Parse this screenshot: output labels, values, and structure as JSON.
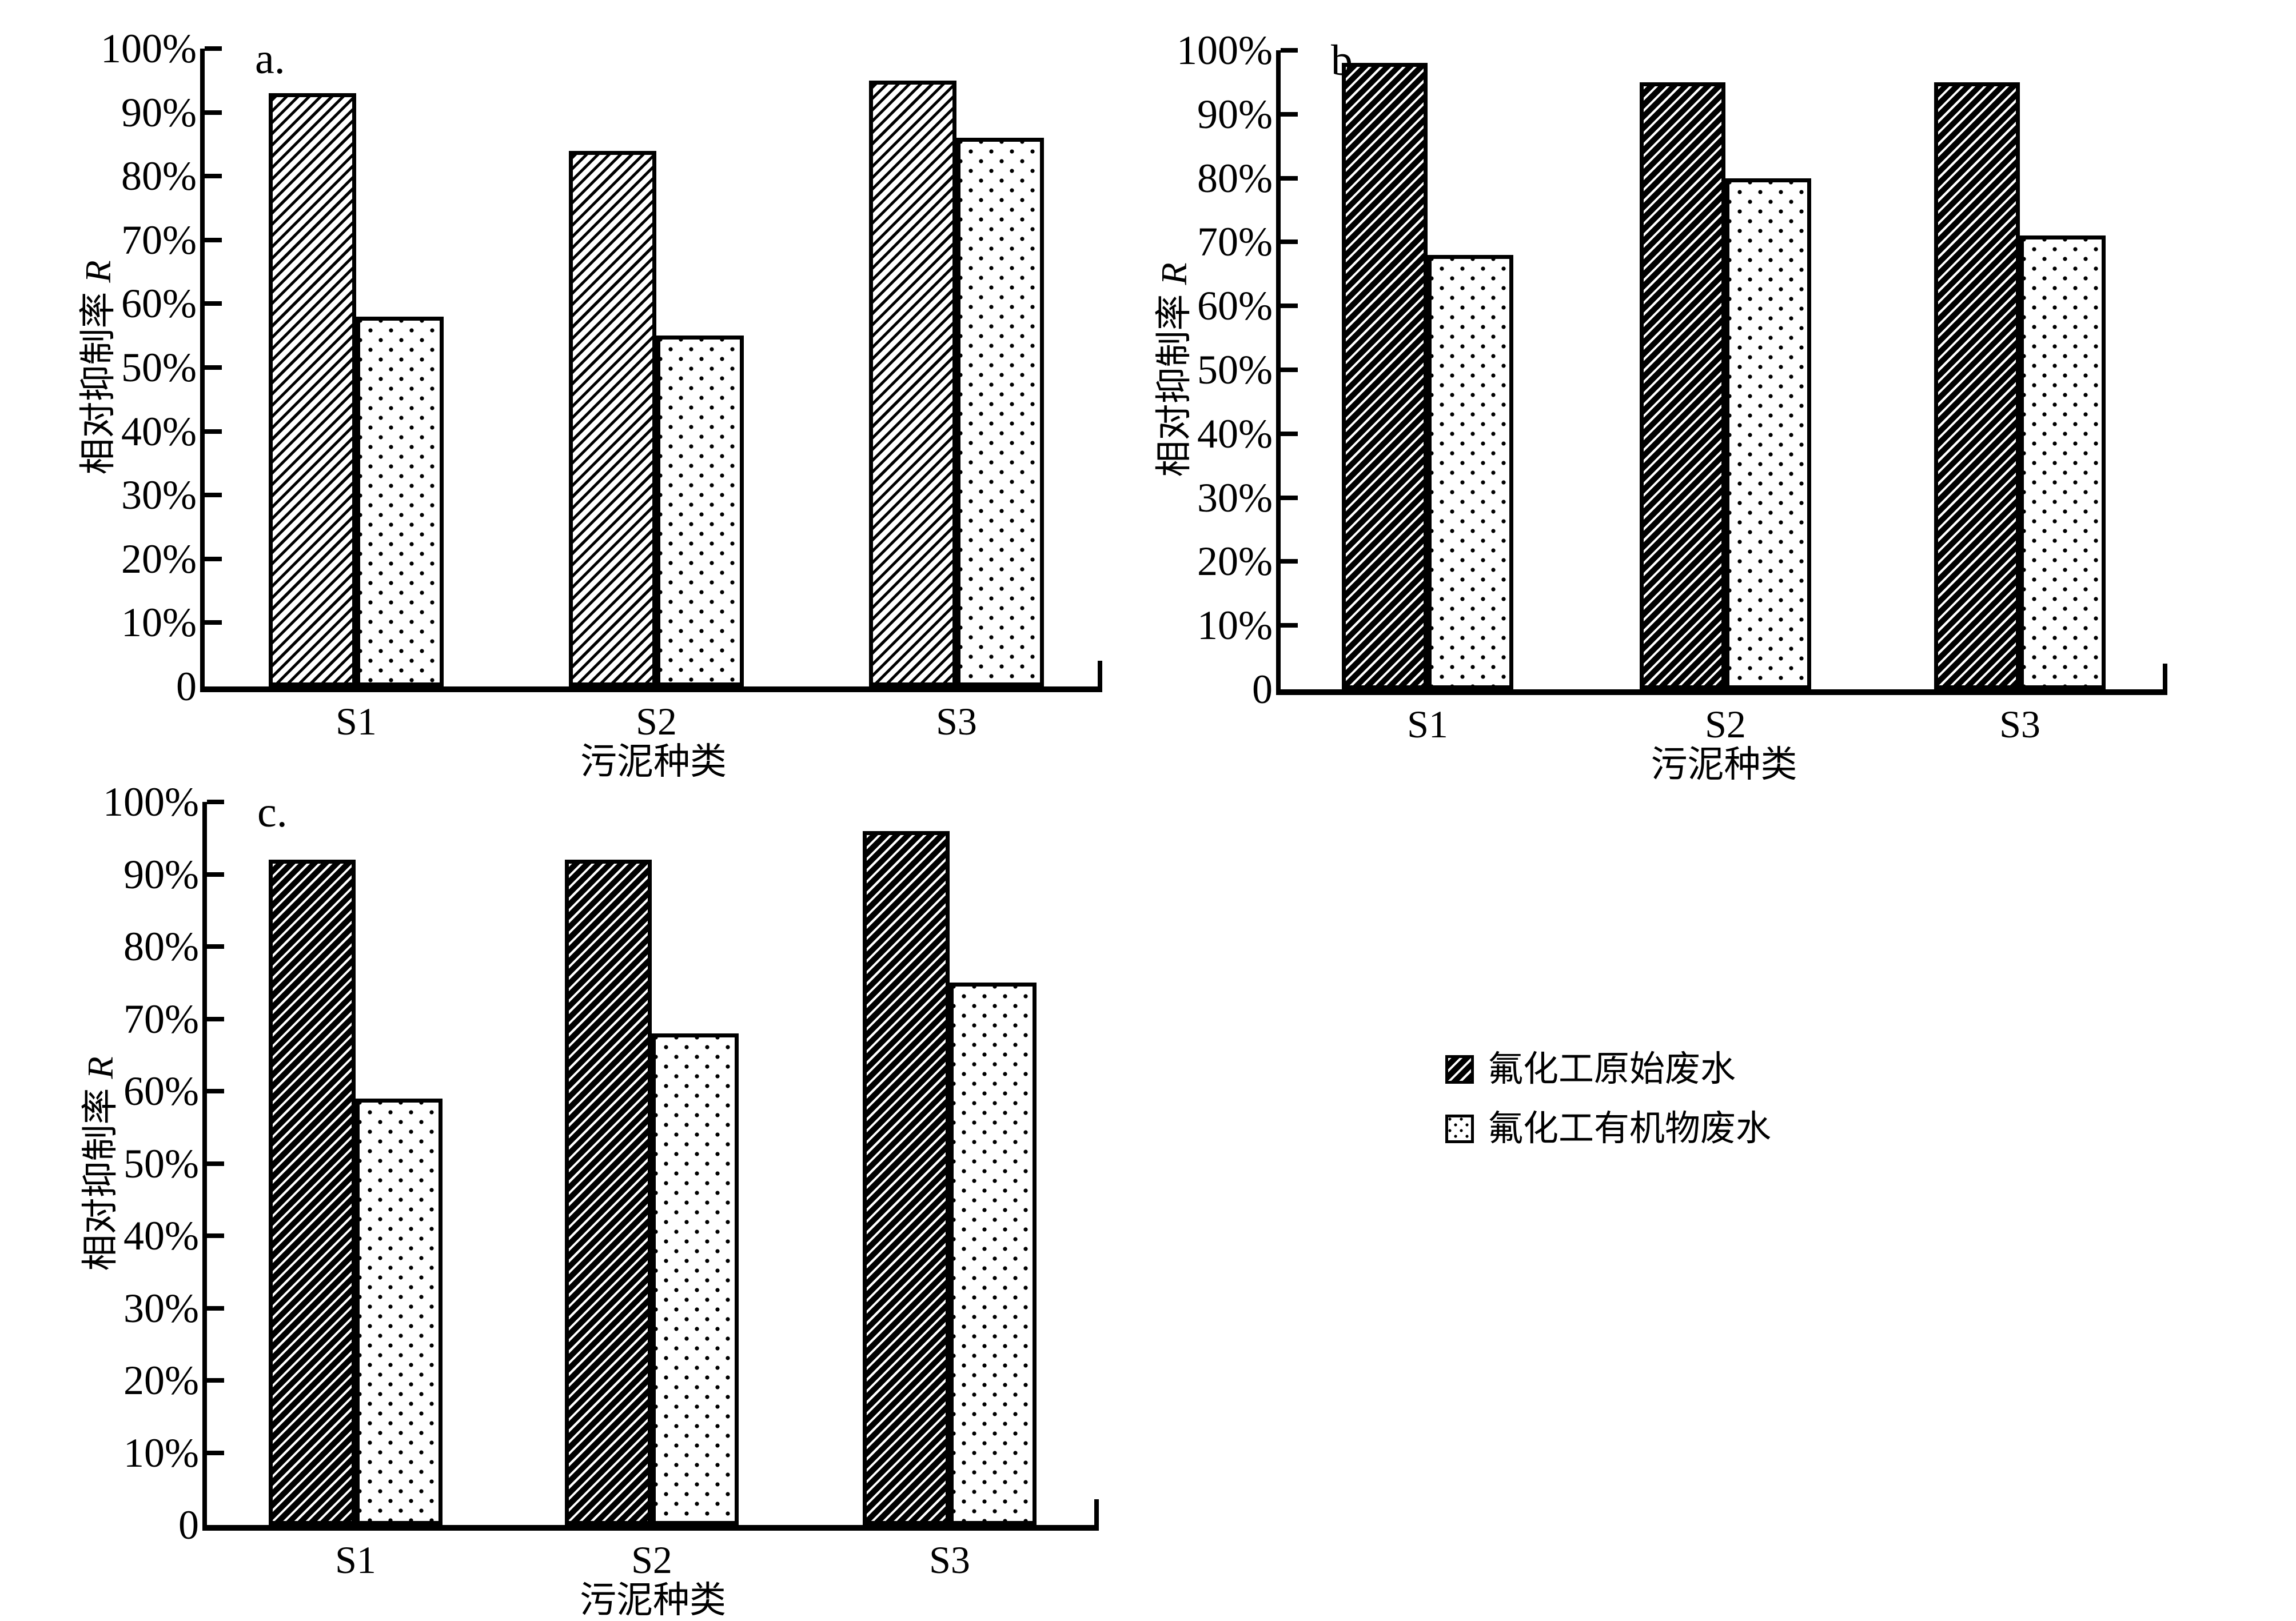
{
  "figure": {
    "background": "#ffffff",
    "ink": "#000000"
  },
  "legend": {
    "items": [
      {
        "label": "氟化工原始废水",
        "swatch": "diagonal-hatch"
      },
      {
        "label": "氟化工有机物废水",
        "swatch": "dots"
      }
    ]
  },
  "chart_data": [
    {
      "id": "a",
      "type": "bar",
      "panel_label": "a.",
      "xlabel": "污泥种类",
      "ylabel": "相对抑制率",
      "ylabel_var": "R",
      "categories": [
        "S1",
        "S2",
        "S3"
      ],
      "series": [
        {
          "name": "氟化工原始废水",
          "pattern": "diagonal-hatch",
          "values": [
            93,
            84,
            95
          ]
        },
        {
          "name": "氟化工有机物废水",
          "pattern": "dots",
          "values": [
            58,
            55,
            86
          ]
        }
      ],
      "ylim": [
        0,
        100
      ],
      "ytick_step": 10,
      "ytick_labels": [
        "0",
        "10%",
        "20%",
        "30%",
        "40%",
        "50%",
        "60%",
        "70%",
        "80%",
        "90%",
        "100%"
      ],
      "grid": false,
      "legend_position": "figure-right-middle"
    },
    {
      "id": "b",
      "type": "bar",
      "panel_label": "b.",
      "xlabel": "污泥种类",
      "ylabel": "相对抑制率",
      "ylabel_var": "R",
      "categories": [
        "S1",
        "S2",
        "S3"
      ],
      "series": [
        {
          "name": "氟化工原始废水",
          "pattern": "diagonal-hatch",
          "values": [
            98,
            95,
            95
          ]
        },
        {
          "name": "氟化工有机物废水",
          "pattern": "dots",
          "values": [
            68,
            80,
            71
          ]
        }
      ],
      "ylim": [
        0,
        100
      ],
      "ytick_step": 10,
      "ytick_labels": [
        "0",
        "10%",
        "20%",
        "30%",
        "40%",
        "50%",
        "60%",
        "70%",
        "80%",
        "90%",
        "100%"
      ],
      "grid": false,
      "legend_position": "figure-right-middle"
    },
    {
      "id": "c",
      "type": "bar",
      "panel_label": "c.",
      "xlabel": "污泥种类",
      "ylabel": "相对抑制率",
      "ylabel_var": "R",
      "categories": [
        "S1",
        "S2",
        "S3"
      ],
      "series": [
        {
          "name": "氟化工原始废水",
          "pattern": "diagonal-hatch",
          "values": [
            92,
            92,
            96
          ]
        },
        {
          "name": "氟化工有机物废水",
          "pattern": "dots",
          "values": [
            59,
            68,
            75
          ]
        }
      ],
      "ylim": [
        0,
        100
      ],
      "ytick_step": 10,
      "ytick_labels": [
        "0",
        "10%",
        "20%",
        "30%",
        "40%",
        "50%",
        "60%",
        "70%",
        "80%",
        "90%",
        "100%"
      ],
      "grid": false,
      "legend_position": "figure-right-middle"
    }
  ]
}
